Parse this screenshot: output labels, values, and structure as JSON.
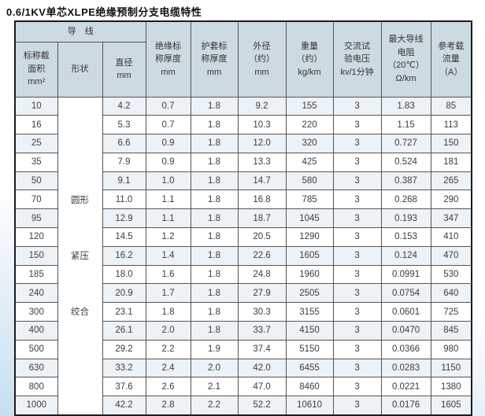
{
  "page": {
    "title": "0.6/1KV单芯XLPE绝缘预制分支电缆特性"
  },
  "colors": {
    "header_bg": "#ccdae2",
    "row_stripe": "#edf2f6",
    "table_border": "#555555",
    "outer_border": "#1c1c1c",
    "page_bottom_tint": "#c7dfef"
  },
  "table": {
    "group_header": "导　线",
    "columns": [
      "标称截\n面积\nmm²",
      "形状",
      "直径\nmm",
      "绝缘标\n称厚度\nmm",
      "护套标\n称厚度\nmm",
      "外径\n（约）\nmm",
      "重量\n（约）\nkg/km",
      "交流试\n验电压\nkv/1分钟",
      "最大导线\n电阻\n（20℃）\nΩ/km",
      "参考载\n流量\n（A）"
    ],
    "shape_labels": [
      "圆形",
      "紧压",
      "绞合"
    ],
    "rows": [
      [
        "10",
        "4.2",
        "0.7",
        "1.8",
        "9.2",
        "155",
        "3",
        "1.83",
        "85"
      ],
      [
        "16",
        "5.3",
        "0.7",
        "1.8",
        "10.3",
        "220",
        "3",
        "1.15",
        "113"
      ],
      [
        "25",
        "6.6",
        "0.9",
        "1.8",
        "12.0",
        "320",
        "3",
        "0.727",
        "150"
      ],
      [
        "35",
        "7.9",
        "0.9",
        "1.8",
        "13.3",
        "425",
        "3",
        "0.524",
        "181"
      ],
      [
        "50",
        "9.1",
        "1.0",
        "1.8",
        "14.7",
        "580",
        "3",
        "0.387",
        "265"
      ],
      [
        "70",
        "11.0",
        "1.1",
        "1.8",
        "16.8",
        "785",
        "3",
        "0.268",
        "290"
      ],
      [
        "95",
        "12.9",
        "1.1",
        "1.8",
        "18.7",
        "1045",
        "3",
        "0.193",
        "347"
      ],
      [
        "120",
        "14.5",
        "1.2",
        "1.8",
        "20.5",
        "1290",
        "3",
        "0.153",
        "410"
      ],
      [
        "150",
        "16.2",
        "1.4",
        "1.8",
        "22.6",
        "1605",
        "3",
        "0.124",
        "470"
      ],
      [
        "185",
        "18.0",
        "1.6",
        "1.8",
        "24.8",
        "1960",
        "3",
        "0.0991",
        "530"
      ],
      [
        "240",
        "20.9",
        "1.7",
        "1.8",
        "27.9",
        "2505",
        "3",
        "0.0754",
        "640"
      ],
      [
        "300",
        "23.1",
        "1.8",
        "1.8",
        "30.3",
        "3155",
        "3",
        "0.0601",
        "725"
      ],
      [
        "400",
        "26.1",
        "2.0",
        "1.8",
        "33.7",
        "4150",
        "3",
        "0.0470",
        "845"
      ],
      [
        "500",
        "29.2",
        "2.2",
        "1.9",
        "37.4",
        "5150",
        "3",
        "0.0366",
        "980"
      ],
      [
        "630",
        "33.2",
        "2.4",
        "2.0",
        "42.0",
        "6455",
        "3",
        "0.0283",
        "1150"
      ],
      [
        "800",
        "37.6",
        "2.6",
        "2.1",
        "47.0",
        "8460",
        "3",
        "0.0221",
        "1380"
      ],
      [
        "1000",
        "42.2",
        "2.8",
        "2.2",
        "52.2",
        "10610",
        "3",
        "0.0176",
        "1605"
      ]
    ]
  }
}
